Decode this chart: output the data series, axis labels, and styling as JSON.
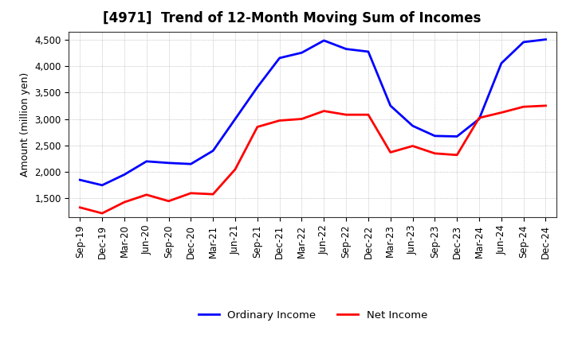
{
  "title": "[4971]  Trend of 12-Month Moving Sum of Incomes",
  "ylabel": "Amount (million yen)",
  "x_labels": [
    "Sep-19",
    "Dec-19",
    "Mar-20",
    "Jun-20",
    "Sep-20",
    "Dec-20",
    "Mar-21",
    "Jun-21",
    "Sep-21",
    "Dec-21",
    "Mar-22",
    "Jun-22",
    "Sep-22",
    "Dec-22",
    "Mar-23",
    "Jun-23",
    "Sep-23",
    "Dec-23",
    "Mar-24",
    "Jun-24",
    "Sep-24",
    "Dec-24"
  ],
  "ordinary_income": [
    1850,
    1750,
    1950,
    2200,
    2170,
    2150,
    2400,
    3000,
    3600,
    4150,
    4250,
    4480,
    4320,
    4270,
    3250,
    2870,
    2680,
    2670,
    3000,
    4050,
    4450,
    4500
  ],
  "net_income": [
    1330,
    1220,
    1430,
    1570,
    1450,
    1600,
    1580,
    2050,
    2850,
    2970,
    3000,
    3150,
    3080,
    3080,
    2370,
    2490,
    2350,
    2320,
    3020,
    3120,
    3230,
    3250
  ],
  "ordinary_color": "#0000ff",
  "net_color": "#ff0000",
  "background_color": "#ffffff",
  "plot_bg_color": "#ffffff",
  "grid_color": "#888888",
  "ylim": [
    1150,
    4650
  ],
  "yticks": [
    1500,
    2000,
    2500,
    3000,
    3500,
    4000,
    4500
  ],
  "title_fontsize": 12,
  "axis_fontsize": 9,
  "tick_fontsize": 8.5,
  "legend_fontsize": 9.5,
  "line_width": 2.0
}
